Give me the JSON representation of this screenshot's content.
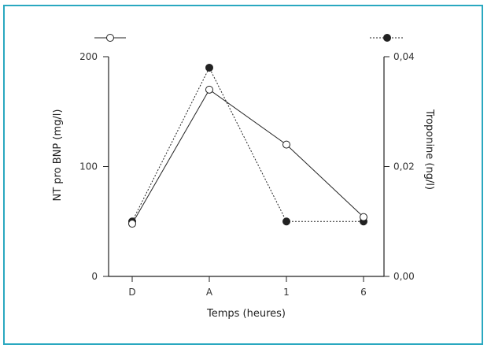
{
  "colors": {
    "frame": "#2aa8c0",
    "ink": "#222222"
  },
  "chart_data": {
    "type": "line",
    "categories": [
      "D",
      "A",
      "1",
      "6"
    ],
    "xlabel": "Temps (heures)",
    "ylabel_left": "NT pro BNP (mg/l)",
    "ylabel_right": "Troponine (ng/l)",
    "left_axis": {
      "range": [
        0,
        200
      ],
      "tick_labels": [
        "0",
        "100",
        "200"
      ]
    },
    "right_axis": {
      "range": [
        0,
        0.04
      ],
      "tick_labels": [
        "0,00",
        "0,02",
        "0,04"
      ]
    },
    "series": [
      {
        "marker": "open-circle",
        "line": "solid",
        "axis": "left",
        "values": [
          48,
          170,
          120,
          54
        ]
      },
      {
        "marker": "filled-circle",
        "line": "dotted",
        "axis": "right",
        "values": [
          0.01,
          0.038,
          0.01,
          0.01
        ]
      }
    ],
    "grid": false,
    "legend": "top"
  }
}
